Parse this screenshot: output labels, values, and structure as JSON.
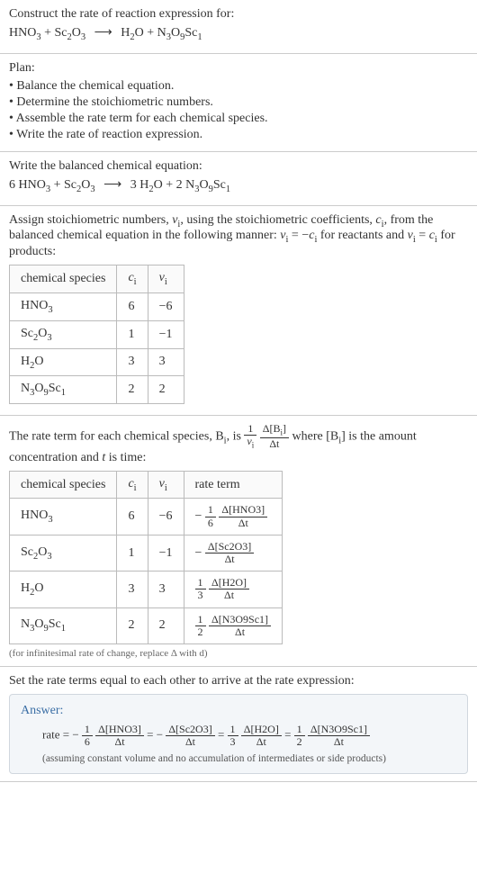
{
  "s1": {
    "title": "Construct the rate of reaction expression for:",
    "eq_lhs1": "HNO",
    "eq_lhs1_sub": "3",
    "eq_plus1": " + ",
    "eq_lhs2": "Sc",
    "eq_lhs2_sub": "2",
    "eq_lhs2b": "O",
    "eq_lhs2b_sub": "3",
    "arrow": "⟶",
    "eq_rhs1": "H",
    "eq_rhs1_sub": "2",
    "eq_rhs1b": "O",
    "eq_plus2": " + ",
    "eq_rhs2": "N",
    "eq_rhs2_sub": "3",
    "eq_rhs2b": "O",
    "eq_rhs2b_sub": "9",
    "eq_rhs2c": "Sc",
    "eq_rhs2c_sub": "1"
  },
  "s2": {
    "title": "Plan:",
    "b1": "Balance the chemical equation.",
    "b2": "Determine the stoichiometric numbers.",
    "b3": "Assemble the rate term for each chemical species.",
    "b4": "Write the rate of reaction expression."
  },
  "s3": {
    "title": "Write the balanced chemical equation:",
    "c1": "6 ",
    "sp1": "HNO",
    "sp1_sub": "3",
    "plus1": " + ",
    "sp2": "Sc",
    "sp2_sub": "2",
    "sp2b": "O",
    "sp2b_sub": "3",
    "arrow": "⟶",
    "c2": " 3 ",
    "sp3": "H",
    "sp3_sub": "2",
    "sp3b": "O",
    "plus2": " + ",
    "c3": "2 ",
    "sp4": "N",
    "sp4_sub": "3",
    "sp4b": "O",
    "sp4b_sub": "9",
    "sp4c": "Sc",
    "sp4c_sub": "1"
  },
  "s4": {
    "para1a": "Assign stoichiometric numbers, ",
    "nu": "ν",
    "nu_sub": "i",
    "para1b": ", using the stoichiometric coefficients, ",
    "c": "c",
    "c_sub": "i",
    "para1c": ", from the balanced chemical equation in the following manner: ",
    "rel1a": "ν",
    "rel1a_sub": "i",
    "rel1eq": " = −",
    "rel1b": "c",
    "rel1b_sub": "i",
    "para1d": " for reactants and ",
    "rel2a": "ν",
    "rel2a_sub": "i",
    "rel2eq": " = ",
    "rel2b": "c",
    "rel2b_sub": "i",
    "para1e": " for products:",
    "h1": "chemical species",
    "h2": "c",
    "h2_sub": "i",
    "h3": "ν",
    "h3_sub": "i",
    "r1a": "HNO",
    "r1a_sub": "3",
    "r1b": "6",
    "r1c": "−6",
    "r2a": "Sc",
    "r2a_sub": "2",
    "r2ab": "O",
    "r2ab_sub": "3",
    "r2b": "1",
    "r2c": "−1",
    "r3a": "H",
    "r3a_sub": "2",
    "r3ab": "O",
    "r3b": "3",
    "r3c": "3",
    "r4a": "N",
    "r4a_sub": "3",
    "r4ab": "O",
    "r4ab_sub": "9",
    "r4ac": "Sc",
    "r4ac_sub": "1",
    "r4b": "2",
    "r4c": "2"
  },
  "s5": {
    "p1": "The rate term for each chemical species, B",
    "p1_sub": "i",
    "p2": ", is ",
    "f_num": "1",
    "f_den_a": "ν",
    "f_den_sub": "i",
    "f2_num": "Δ[B",
    "f2_num_sub": "i",
    "f2_num_b": "]",
    "f2_den": "Δt",
    "p3": " where [B",
    "p3_sub": "i",
    "p4": "] is the amount concentration and ",
    "t": "t",
    "p5": " is time:",
    "h1": "chemical species",
    "h2": "c",
    "h2_sub": "i",
    "h3": "ν",
    "h3_sub": "i",
    "h4": "rate term",
    "r1a": "HNO",
    "r1a_sub": "3",
    "r1b": "6",
    "r1c": "−6",
    "r1d_pre": "−",
    "r1d_n1": "1",
    "r1d_d1": "6",
    "r1d_n2": "Δ[HNO3]",
    "r1d_d2": "Δt",
    "r2a": "Sc",
    "r2a_sub": "2",
    "r2ab": "O",
    "r2ab_sub": "3",
    "r2b": "1",
    "r2c": "−1",
    "r2d_pre": "−",
    "r2d_n2": "Δ[Sc2O3]",
    "r2d_d2": "Δt",
    "r3a": "H",
    "r3a_sub": "2",
    "r3ab": "O",
    "r3b": "3",
    "r3c": "3",
    "r3d_n1": "1",
    "r3d_d1": "3",
    "r3d_n2": "Δ[H2O]",
    "r3d_d2": "Δt",
    "r4a": "N",
    "r4a_sub": "3",
    "r4ab": "O",
    "r4ab_sub": "9",
    "r4ac": "Sc",
    "r4ac_sub": "1",
    "r4b": "2",
    "r4c": "2",
    "r4d_n1": "1",
    "r4d_d1": "2",
    "r4d_n2": "Δ[N3O9Sc1]",
    "r4d_d2": "Δt",
    "note": "(for infinitesimal rate of change, replace Δ with d)"
  },
  "s6": {
    "title": "Set the rate terms equal to each other to arrive at the rate expression:",
    "ans_title": "Answer:",
    "rate": "rate = ",
    "t1_pre": "−",
    "t1_n1": "1",
    "t1_d1": "6",
    "t1_n2": "Δ[HNO3]",
    "t1_d2": "Δt",
    "eq1": " = ",
    "t2_pre": "−",
    "t2_n2": "Δ[Sc2O3]",
    "t2_d2": "Δt",
    "eq2": " = ",
    "t3_n1": "1",
    "t3_d1": "3",
    "t3_n2": "Δ[H2O]",
    "t3_d2": "Δt",
    "eq3": " = ",
    "t4_n1": "1",
    "t4_d1": "2",
    "t4_n2": "Δ[N3O9Sc1]",
    "t4_d2": "Δt",
    "note": "(assuming constant volume and no accumulation of intermediates or side products)"
  }
}
